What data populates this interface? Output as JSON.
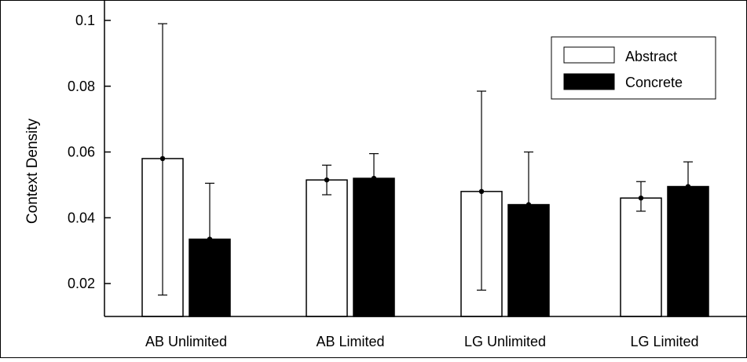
{
  "chart_data": {
    "type": "bar",
    "title": "",
    "xlabel": "",
    "ylabel": "Context Density",
    "categories": [
      "AB Unlimited",
      "AB Limited",
      "LG Unlimited",
      "LG Limited"
    ],
    "ylim": [
      0.01,
      0.1
    ],
    "yticks": [
      0.02,
      0.04,
      0.06,
      0.08,
      0.1
    ],
    "ytick_labels": [
      "0.02",
      "0.04",
      "0.06",
      "0.08",
      "0.1"
    ],
    "grid": false,
    "legend_position": "top-right",
    "series": [
      {
        "name": "Abstract",
        "color": "#ffffff",
        "values": [
          0.058,
          0.0515,
          0.048,
          0.046
        ],
        "error_low": [
          0.0165,
          0.047,
          0.018,
          0.042
        ],
        "error_high": [
          0.099,
          0.056,
          0.0785,
          0.051
        ]
      },
      {
        "name": "Concrete",
        "color": "#000000",
        "values": [
          0.0335,
          0.052,
          0.044,
          0.0495
        ],
        "error_low": [
          0.0165,
          0.0445,
          0.028,
          0.042
        ],
        "error_high": [
          0.0505,
          0.0595,
          0.06,
          0.057
        ]
      }
    ]
  }
}
